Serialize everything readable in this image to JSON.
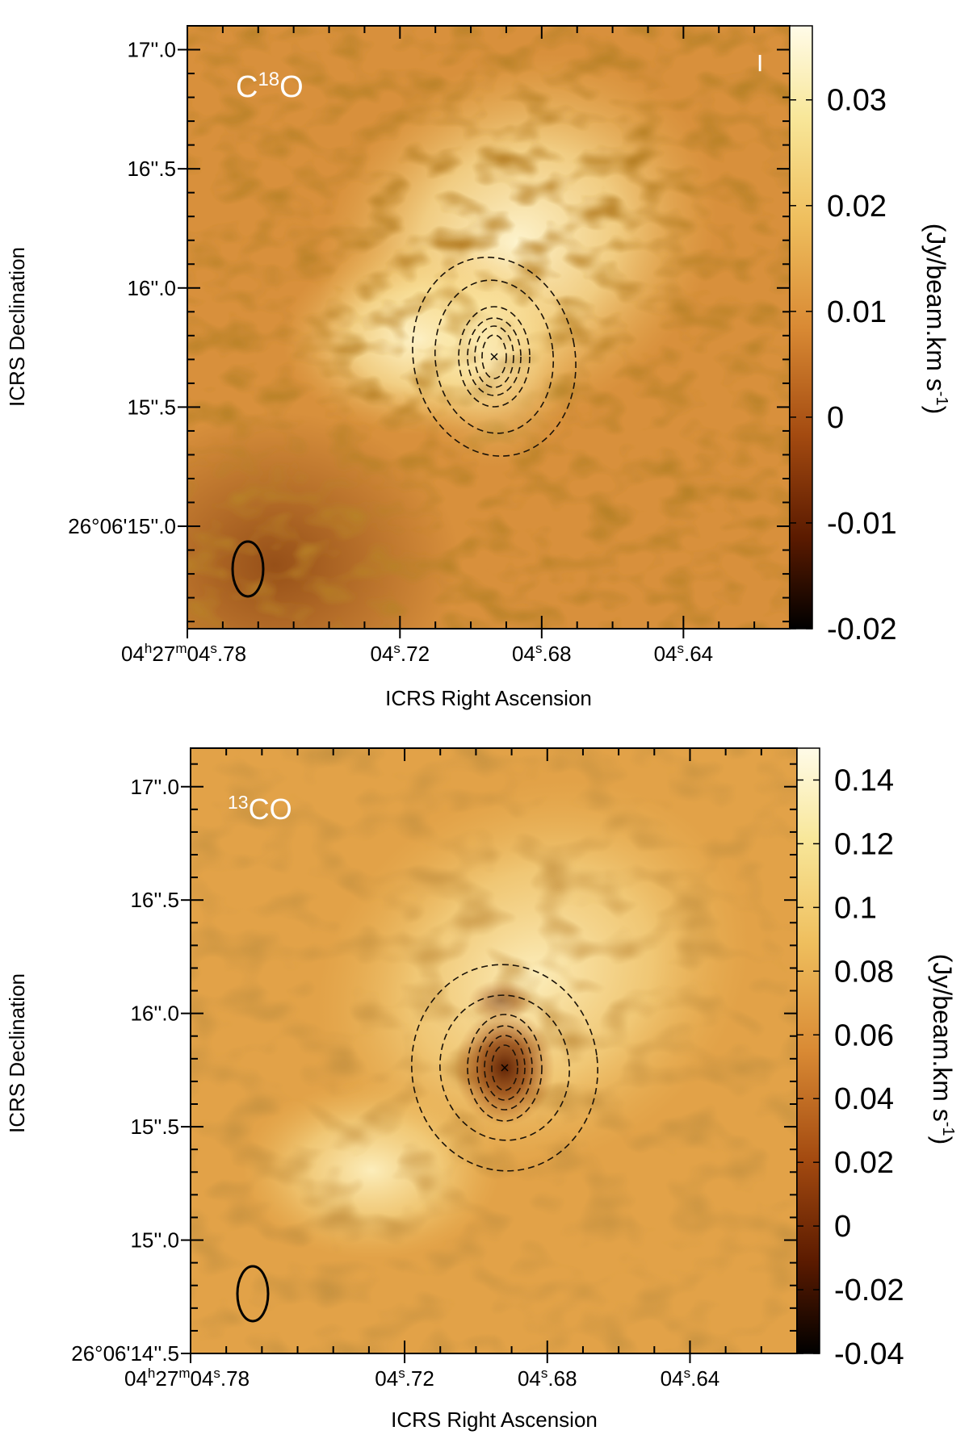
{
  "chart_data": [
    {
      "type": "heatmap",
      "panel_label": "C18O",
      "panel_label_base": "C",
      "panel_label_sup": "18",
      "panel_label_tail": "O",
      "xlabel": "ICRS Right Ascension",
      "ylabel": "ICRS Declination",
      "x_ticks": [
        {
          "ra_s": 4.78,
          "label_main": "04",
          "sup1": "h",
          "mid1": "27",
          "sup2": "m",
          "mid2": "04",
          "sup3": "s",
          "tail": ".78"
        },
        {
          "ra_s": 4.72,
          "label_main": "04",
          "sup3": "s",
          "tail": ".72"
        },
        {
          "ra_s": 4.68,
          "label_main": "04",
          "sup3": "s",
          "tail": ".68"
        },
        {
          "ra_s": 4.64,
          "label_main": "04",
          "sup3": "s",
          "tail": ".64"
        }
      ],
      "y_ticks": [
        {
          "dec_arcsec": 17.0,
          "label": "17''.0"
        },
        {
          "dec_arcsec": 16.5,
          "label": "16''.5"
        },
        {
          "dec_arcsec": 16.0,
          "label": "16''.0"
        },
        {
          "dec_arcsec": 15.5,
          "label": "15''.5"
        },
        {
          "dec_arcsec": 15.0,
          "label": "26°06'15''.0"
        }
      ],
      "colorbar": {
        "label": "(Jy/beam.km s",
        "label_sup": "-1",
        "label_end": ")",
        "range": [
          -0.02,
          0.037
        ],
        "ticks": [
          0.03,
          0.02,
          0.01,
          0,
          -0.01,
          -0.02
        ],
        "tick_labels": [
          "0.03",
          "0.02",
          "0.01",
          "0",
          "-0.01",
          "-0.02"
        ]
      },
      "ra_range_s": [
        4.61,
        4.78
      ],
      "dec_range_arcsec": [
        14.57,
        17.1
      ],
      "source_center": {
        "ra_s": 4.7,
        "dec_arcsec": 15.72
      },
      "contour_levels": 5,
      "colormap": "cubehelix-orange"
    },
    {
      "type": "heatmap",
      "panel_label": "13CO",
      "panel_label_base": "",
      "panel_label_sup": "13",
      "panel_label_tail": "CO",
      "xlabel": "ICRS Right Ascension",
      "ylabel": "ICRS Declination",
      "x_ticks": [
        {
          "ra_s": 4.78,
          "label_main": "04",
          "sup1": "h",
          "mid1": "27",
          "sup2": "m",
          "mid2": "04",
          "sup3": "s",
          "tail": ".78"
        },
        {
          "ra_s": 4.72,
          "label_main": "04",
          "sup3": "s",
          "tail": ".72"
        },
        {
          "ra_s": 4.68,
          "label_main": "04",
          "sup3": "s",
          "tail": ".68"
        },
        {
          "ra_s": 4.64,
          "label_main": "04",
          "sup3": "s",
          "tail": ".64"
        }
      ],
      "y_ticks": [
        {
          "dec_arcsec": 17.0,
          "label": "17''.0"
        },
        {
          "dec_arcsec": 16.5,
          "label": "16''.5"
        },
        {
          "dec_arcsec": 16.0,
          "label": "16''.0"
        },
        {
          "dec_arcsec": 15.5,
          "label": "15''.5"
        },
        {
          "dec_arcsec": 15.0,
          "label": "15''.0"
        },
        {
          "dec_arcsec": 14.5,
          "label": "26°06'14''.5"
        }
      ],
      "colorbar": {
        "label": "(Jy/beam.km s",
        "label_sup": "-1",
        "label_end": ")",
        "range": [
          -0.04,
          0.15
        ],
        "ticks": [
          0.14,
          0.12,
          0.1,
          0.08,
          0.06,
          0.04,
          0.02,
          0,
          -0.02,
          -0.04
        ],
        "tick_labels": [
          "0.14",
          "0.12",
          "0.1",
          "0.08",
          "0.06",
          "0.04",
          "0.02",
          "0",
          "-0.02",
          "-0.04"
        ]
      },
      "ra_range_s": [
        4.61,
        4.78
      ],
      "dec_range_arcsec": [
        14.5,
        17.17
      ],
      "source_center": {
        "ra_s": 4.7,
        "dec_arcsec": 15.72
      },
      "contour_levels": 5,
      "colormap": "cubehelix-orange"
    }
  ]
}
